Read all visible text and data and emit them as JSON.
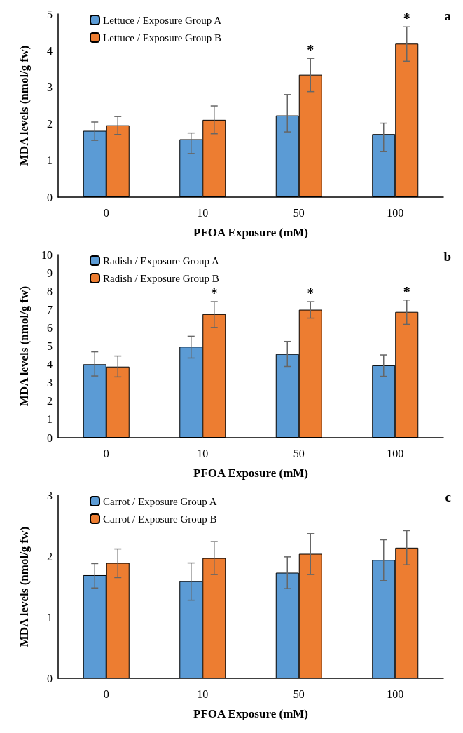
{
  "chart_data": [
    {
      "type": "bar",
      "title": "a",
      "xlabel": "PFOA Exposure (mM)",
      "ylabel": "MDA levels (nmol/g fw)",
      "categories": [
        "0",
        "10",
        "50",
        "100"
      ],
      "ylim": [
        0,
        5
      ],
      "yticks": [
        0,
        1,
        2,
        3,
        4,
        5
      ],
      "legend": "top left",
      "grid": false,
      "series": [
        {
          "name": "Lettuce / Exposure Group A",
          "color": "#5b9bd5",
          "values": [
            1.81,
            1.58,
            2.23,
            1.72
          ],
          "errors": [
            [
              1.55,
              2.05
            ],
            [
              1.19,
              1.75
            ],
            [
              1.78,
              2.8
            ],
            [
              1.25,
              2.02
            ]
          ]
        },
        {
          "name": "Lettuce / Exposure Group B",
          "color": "#ed7d31",
          "values": [
            1.96,
            2.11,
            3.34,
            4.19
          ],
          "errors": [
            [
              1.71,
              2.2
            ],
            [
              1.73,
              2.49
            ],
            [
              2.88,
              3.79
            ],
            [
              3.71,
              4.65
            ]
          ]
        }
      ],
      "annotations": [
        {
          "text": "*",
          "x": "50",
          "y": 3.34
        },
        {
          "text": "*",
          "x": "100",
          "y": 4.19
        }
      ]
    },
    {
      "type": "bar",
      "title": "b",
      "xlabel": "PFOA Exposure (mM)",
      "ylabel": "MDA levels (nmol/g fw)",
      "categories": [
        "0",
        "10",
        "50",
        "100"
      ],
      "ylim": [
        0,
        10
      ],
      "yticks": [
        0,
        1,
        2,
        3,
        4,
        5,
        6,
        7,
        8,
        9,
        10
      ],
      "legend": "top left",
      "grid": false,
      "series": [
        {
          "name": "Radish / Exposure Group A",
          "color": "#5b9bd5",
          "values": [
            4.01,
            4.97,
            4.57,
            3.95
          ],
          "errors": [
            [
              3.37,
              4.69
            ],
            [
              4.35,
              5.54
            ],
            [
              3.89,
              5.26
            ],
            [
              3.35,
              4.52
            ]
          ]
        },
        {
          "name": "Radish / Exposure Group B",
          "color": "#ed7d31",
          "values": [
            3.88,
            6.75,
            6.99,
            6.87
          ],
          "errors": [
            [
              3.32,
              4.46
            ],
            [
              6.02,
              7.43
            ],
            [
              6.53,
              7.43
            ],
            [
              6.19,
              7.52
            ]
          ]
        }
      ],
      "annotations": [
        {
          "text": "*",
          "x": "10",
          "y": 6.75
        },
        {
          "text": "*",
          "x": "50",
          "y": 6.99
        },
        {
          "text": "*",
          "x": "100",
          "y": 6.87
        }
      ]
    },
    {
      "type": "bar",
      "title": "c",
      "xlabel": "PFOA Exposure (mM)",
      "ylabel": "MDA levels (nmol/g fw)",
      "categories": [
        "0",
        "10",
        "50",
        "100"
      ],
      "ylim": [
        0,
        3
      ],
      "yticks": [
        0,
        1,
        2,
        3
      ],
      "legend": "top left",
      "grid": false,
      "series": [
        {
          "name": "Carrot / Exposure Group A",
          "color": "#5b9bd5",
          "values": [
            1.69,
            1.59,
            1.73,
            1.94
          ],
          "errors": [
            [
              1.48,
              1.88
            ],
            [
              1.28,
              1.89
            ],
            [
              1.47,
              1.99
            ],
            [
              1.6,
              2.27
            ]
          ]
        },
        {
          "name": "Carrot / Exposure Group B",
          "color": "#ed7d31",
          "values": [
            1.89,
            1.97,
            2.04,
            2.14
          ],
          "errors": [
            [
              1.65,
              2.12
            ],
            [
              1.7,
              2.24
            ],
            [
              1.7,
              2.37
            ],
            [
              1.86,
              2.42
            ]
          ]
        }
      ]
    }
  ]
}
